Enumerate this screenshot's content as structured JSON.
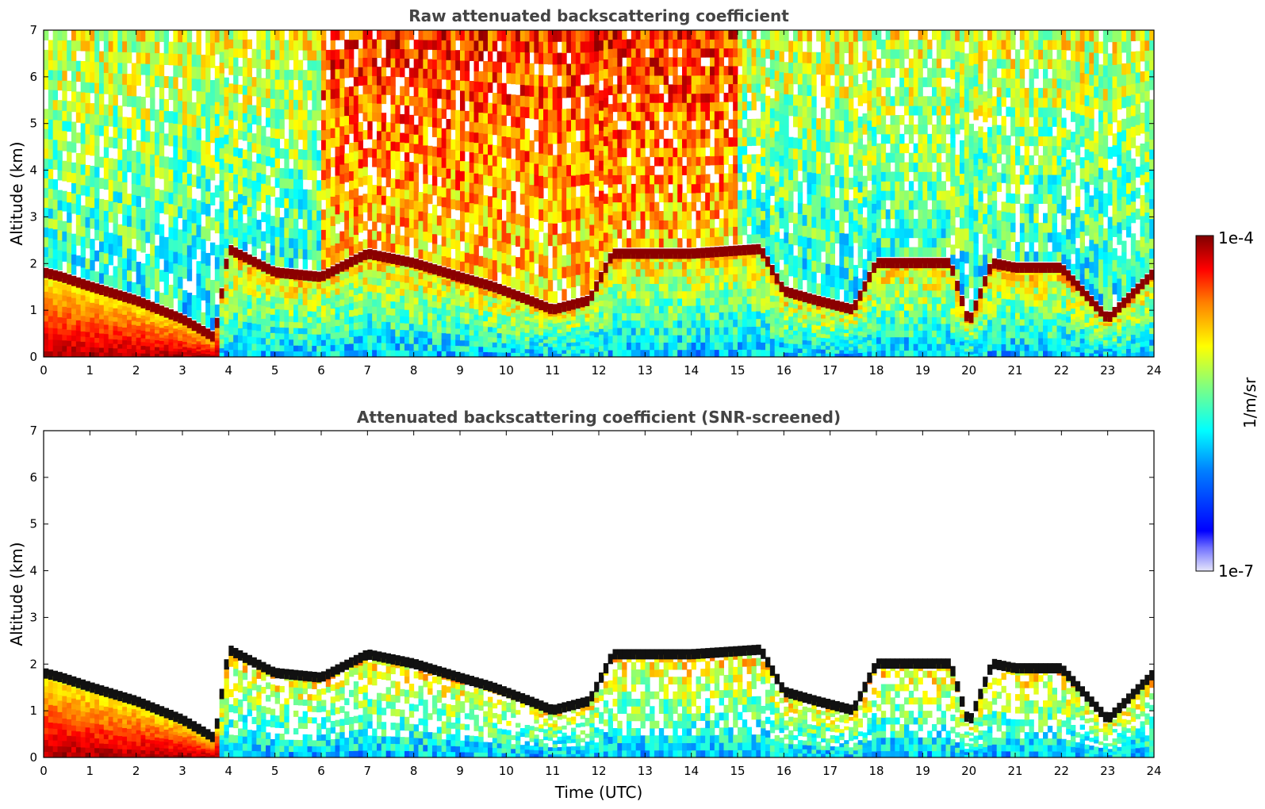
{
  "chart_data": [
    {
      "type": "heatmap",
      "title": "Raw attenuated backscattering coefficient",
      "xlabel": "",
      "ylabel": "Altitude (km)",
      "xlim": [
        0,
        24
      ],
      "ylim": [
        0,
        7
      ],
      "xticks": [
        0,
        1,
        2,
        3,
        4,
        5,
        6,
        7,
        8,
        9,
        10,
        11,
        12,
        13,
        14,
        15,
        16,
        17,
        18,
        19,
        20,
        21,
        22,
        23,
        24
      ],
      "yticks": [
        0,
        1,
        2,
        3,
        4,
        5,
        6,
        7
      ],
      "layer_top_km": [
        [
          0,
          1.8
        ],
        [
          0.4,
          1.7
        ],
        [
          1,
          1.5
        ],
        [
          2,
          1.2
        ],
        [
          3,
          0.8
        ],
        [
          3.7,
          0.4
        ],
        [
          4,
          2.3
        ],
        [
          5,
          1.8
        ],
        [
          6,
          1.7
        ],
        [
          7,
          2.2
        ],
        [
          8,
          2.0
        ],
        [
          9,
          1.7
        ],
        [
          9.7,
          1.5
        ],
        [
          10.5,
          1.2
        ],
        [
          11,
          1.0
        ],
        [
          11.8,
          1.2
        ],
        [
          12.3,
          2.2
        ],
        [
          13,
          2.2
        ],
        [
          14,
          2.2
        ],
        [
          15.5,
          2.3
        ],
        [
          16,
          1.4
        ],
        [
          16.7,
          1.2
        ],
        [
          17.5,
          1.0
        ],
        [
          18,
          2.0
        ],
        [
          19,
          2.0
        ],
        [
          19.6,
          2.0
        ],
        [
          20,
          0.7
        ],
        [
          20.5,
          2.0
        ],
        [
          21,
          1.9
        ],
        [
          22,
          1.9
        ],
        [
          23,
          0.8
        ],
        [
          24,
          1.8
        ]
      ],
      "colorbar": {
        "label": "1/m/sr",
        "min_label": "1e-7",
        "max_label": "1e-4",
        "scale": "log"
      }
    },
    {
      "type": "heatmap",
      "title": "Attenuated backscattering coefficient (SNR-screened)",
      "xlabel": "Time (UTC)",
      "ylabel": "Altitude (km)",
      "xlim": [
        0,
        24
      ],
      "ylim": [
        0,
        7
      ],
      "xticks": [
        0,
        1,
        2,
        3,
        4,
        5,
        6,
        7,
        8,
        9,
        10,
        11,
        12,
        13,
        14,
        15,
        16,
        17,
        18,
        19,
        20,
        21,
        22,
        23,
        24
      ],
      "yticks": [
        0,
        1,
        2,
        3,
        4,
        5,
        6,
        7
      ],
      "colorbar": {
        "label": "1/m/sr",
        "min_label": "1e-7",
        "max_label": "1e-4",
        "scale": "log"
      }
    }
  ],
  "colors": {
    "jet": [
      "#00007f",
      "#0000ff",
      "#0080ff",
      "#00ffff",
      "#80ff80",
      "#ffff00",
      "#ff8000",
      "#ff0000",
      "#7f0000"
    ],
    "lowest": "#e6e6fa",
    "axis": "#000000",
    "title": "#444444"
  }
}
